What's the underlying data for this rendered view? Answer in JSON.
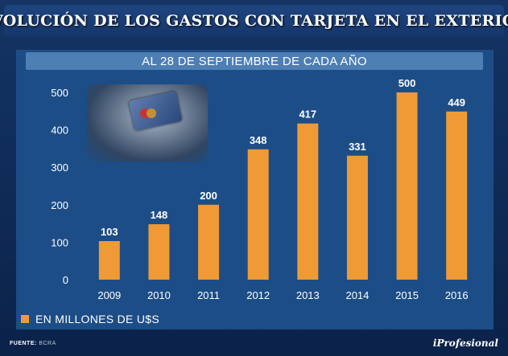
{
  "header": {
    "title": "EVOLUCIÓN DE LOS GASTOS CON TARJETA EN EL EXTERIOR"
  },
  "chart_data": {
    "type": "bar",
    "title": "AL 28 DE SEPTIEMBRE DE CADA AÑO",
    "categories": [
      "2009",
      "2010",
      "2011",
      "2012",
      "2013",
      "2014",
      "2015",
      "2016"
    ],
    "values": [
      103,
      148,
      200,
      348,
      417,
      331,
      500,
      449
    ],
    "data_labels": [
      "103",
      "148",
      "200",
      "348",
      "417",
      "331",
      "500",
      "449"
    ],
    "y_ticks": [
      "0",
      "100",
      "200",
      "300",
      "400",
      "500"
    ],
    "ylim": [
      0,
      500
    ],
    "xlabel": "",
    "ylabel": "",
    "grid": false,
    "legend": "EN MILLONES DE U$S",
    "legend_position": "bottom-left",
    "bar_color": "#ef9a34"
  },
  "footer": {
    "source_label": "FUENTE:",
    "source_value": "BCRA",
    "brand": "iProfesional"
  }
}
